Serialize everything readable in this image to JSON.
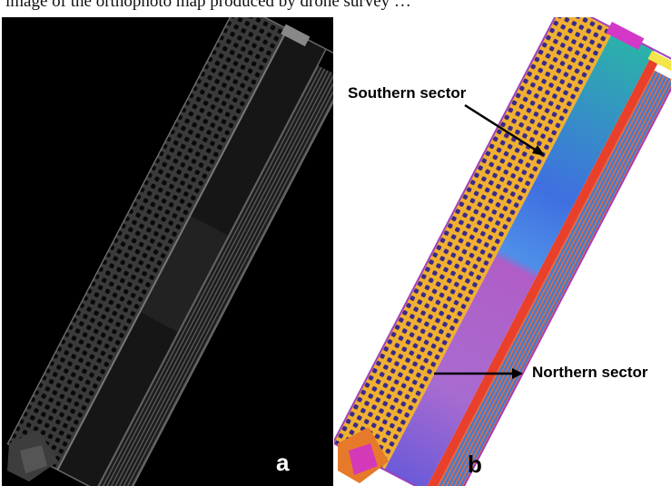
{
  "caption_fragment": "image of the orthophoto map produced by drone survey …",
  "panel_a": {
    "label": "a"
  },
  "panel_b": {
    "label": "b",
    "annotations": {
      "southern": "Southern sector",
      "northern": "Northern sector"
    }
  },
  "colors": {
    "panel_a_bg": "#000000",
    "panel_b_bg": "#ffffff",
    "label_a": "#ffffff",
    "label_b": "#000000"
  }
}
